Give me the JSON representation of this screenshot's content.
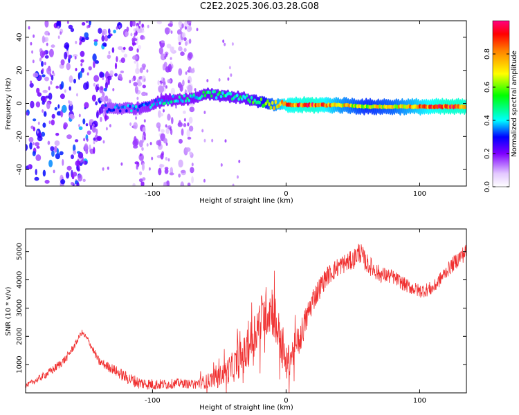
{
  "title": "C2E2.2025.306.03.28.G08",
  "chart_data": [
    {
      "type": "heatmap",
      "title": "C2E2.2025.306.03.28.G08",
      "xlabel": "Height of straight line (km)",
      "ylabel": "Frequency (Hz)",
      "xlim": [
        -195,
        135
      ],
      "ylim": [
        -50,
        50
      ],
      "xticks": [
        -100,
        0,
        100
      ],
      "xtick_labels": [
        "-100",
        "0",
        "100"
      ],
      "yticks": [
        -40,
        -20,
        0,
        20,
        40
      ],
      "ytick_labels": [
        "-40",
        "-20",
        "0",
        "20",
        "40"
      ],
      "colorbar": {
        "label": "Normalized spectral amplitude",
        "range": [
          0,
          1
        ],
        "ticks": [
          0,
          0.2,
          0.4,
          0.6,
          0.8
        ],
        "tick_labels": [
          "0.0",
          "0.2",
          "0.4",
          "0.6",
          "0.8"
        ]
      },
      "ridge": {
        "x": [
          -130,
          -110,
          -90,
          -70,
          -60,
          -50,
          -40,
          -30,
          -20,
          -10,
          0,
          20,
          40,
          60,
          80,
          100,
          120,
          135
        ],
        "freq": [
          -3,
          -3,
          2,
          3,
          6,
          5,
          4,
          3,
          1,
          -1,
          -1,
          -1,
          -1,
          -2,
          -2,
          -2,
          -2,
          -2
        ],
        "amplitude": [
          0.35,
          0.4,
          0.45,
          0.45,
          0.5,
          0.5,
          0.5,
          0.5,
          0.6,
          0.75,
          0.9,
          0.95,
          0.8,
          0.7,
          0.75,
          0.85,
          0.95,
          0.95
        ]
      }
    },
    {
      "type": "line",
      "xlabel": "Height of straight line (km)",
      "ylabel": "SNR (10 * v/v)",
      "xlim": [
        -195,
        135
      ],
      "ylim": [
        0,
        5800
      ],
      "xticks": [
        -100,
        0,
        100
      ],
      "xtick_labels": [
        "-100",
        "0",
        "100"
      ],
      "yticks": [
        1000,
        2000,
        3000,
        4000,
        5000
      ],
      "ytick_labels": [
        "1000",
        "2000",
        "3000",
        "4000",
        "5000"
      ],
      "series": [
        {
          "name": "SNR",
          "color": "#f03030",
          "x": [
            -195,
            -185,
            -175,
            -165,
            -158,
            -153,
            -148,
            -140,
            -130,
            -120,
            -110,
            -100,
            -90,
            -80,
            -70,
            -60,
            -50,
            -40,
            -30,
            -25,
            -20,
            -15,
            -10,
            -5,
            0,
            5,
            10,
            15,
            20,
            25,
            30,
            40,
            50,
            55,
            60,
            70,
            80,
            90,
            100,
            110,
            120,
            130,
            135
          ],
          "y": [
            250,
            500,
            800,
            1200,
            1700,
            2150,
            1850,
            1100,
            850,
            550,
            350,
            300,
            300,
            350,
            300,
            400,
            600,
            900,
            1400,
            2000,
            2500,
            2900,
            3000,
            2000,
            1000,
            1400,
            1900,
            2600,
            3300,
            3700,
            4100,
            4500,
            4700,
            5000,
            4600,
            4200,
            4100,
            3800,
            3600,
            3700,
            4300,
            4800,
            5000
          ],
          "noise": [
            80,
            120,
            150,
            150,
            120,
            100,
            120,
            150,
            180,
            220,
            220,
            200,
            180,
            160,
            160,
            250,
            350,
            550,
            700,
            800,
            900,
            900,
            1000,
            800,
            600,
            600,
            600,
            500,
            450,
            400,
            350,
            350,
            350,
            400,
            350,
            300,
            250,
            250,
            250,
            250,
            250,
            300,
            300
          ]
        }
      ]
    }
  ]
}
